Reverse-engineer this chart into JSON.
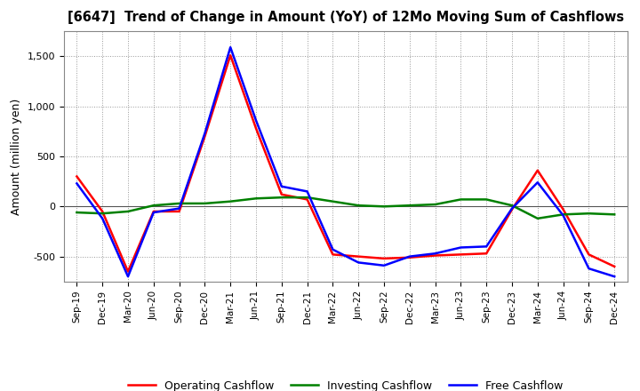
{
  "title": "[6647]  Trend of Change in Amount (YoY) of 12Mo Moving Sum of Cashflows",
  "ylabel": "Amount (million yen)",
  "x_labels": [
    "Sep-19",
    "Dec-19",
    "Mar-20",
    "Jun-20",
    "Sep-20",
    "Dec-20",
    "Mar-21",
    "Jun-21",
    "Sep-21",
    "Dec-21",
    "Mar-22",
    "Jun-22",
    "Sep-22",
    "Dec-22",
    "Mar-23",
    "Jun-23",
    "Sep-23",
    "Dec-23",
    "Mar-24",
    "Jun-24",
    "Sep-24",
    "Dec-24"
  ],
  "operating": [
    300,
    -50,
    -650,
    -50,
    -50,
    700,
    1510,
    780,
    120,
    70,
    -480,
    -500,
    -520,
    -510,
    -490,
    -480,
    -470,
    -30,
    360,
    -30,
    -480,
    -600
  ],
  "investing": [
    -60,
    -70,
    -50,
    10,
    30,
    30,
    50,
    80,
    90,
    90,
    50,
    10,
    0,
    10,
    20,
    70,
    70,
    10,
    -120,
    -80,
    -70,
    -80
  ],
  "free": [
    230,
    -120,
    -700,
    -60,
    -20,
    730,
    1590,
    860,
    200,
    150,
    -430,
    -560,
    -590,
    -500,
    -470,
    -410,
    -400,
    -20,
    240,
    -90,
    -620,
    -700
  ],
  "ylim": [
    -750,
    1750
  ],
  "yticks": [
    -500,
    0,
    500,
    1000,
    1500
  ],
  "operating_color": "#ff0000",
  "investing_color": "#008000",
  "free_color": "#0000ff",
  "bg_color": "#ffffff",
  "grid_color": "#999999",
  "legend_labels": [
    "Operating Cashflow",
    "Investing Cashflow",
    "Free Cashflow"
  ]
}
